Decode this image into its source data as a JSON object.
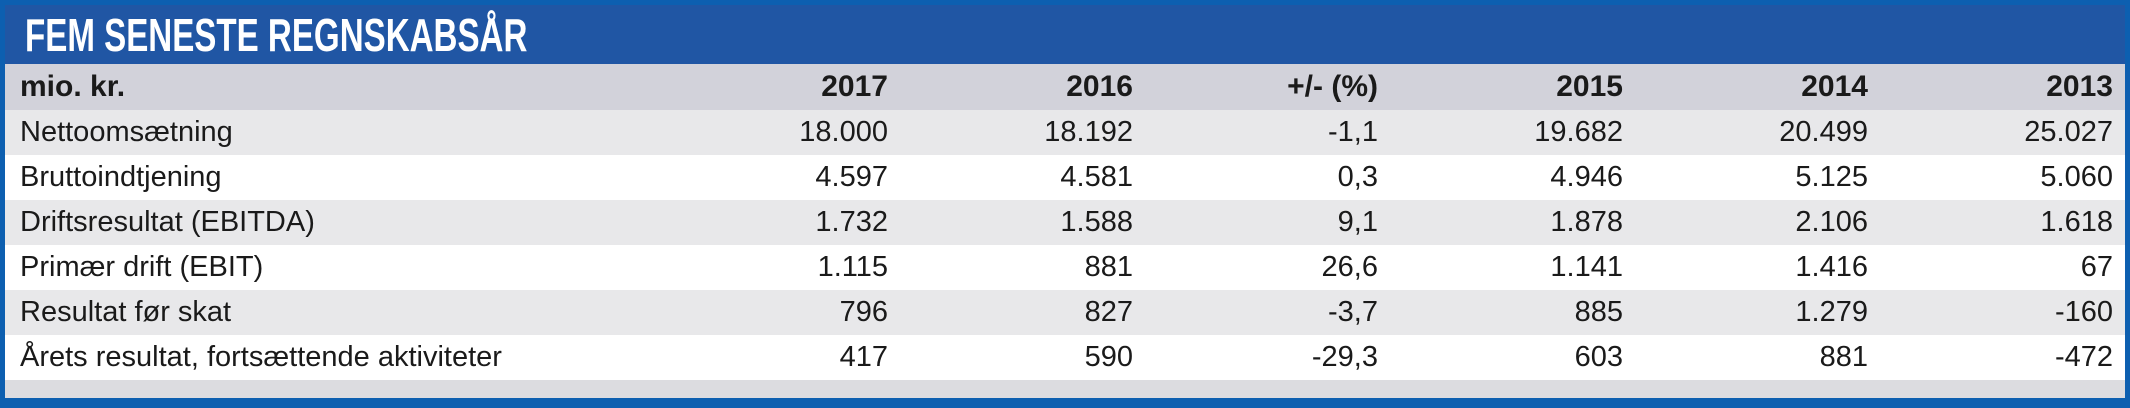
{
  "title": "FEM SENESTE REGNSKABSÅR",
  "colors": {
    "frame_blue": "#0d5fb0",
    "title_bar_blue": "#2056a4",
    "title_text": "#ffffff",
    "header_row_gray": "#d2d2da",
    "stripe_row_gray": "#e8e8ea",
    "plain_row_white": "#ffffff",
    "spacer_row_gray": "#dcdce0",
    "body_text": "#1a1a1a"
  },
  "chart_data": {
    "type": "table",
    "title": "FEM SENESTE REGNSKABSÅR",
    "unit_label": "mio. kr.",
    "columns": [
      "2017",
      "2016",
      "+/- (%)",
      "2015",
      "2014",
      "2013"
    ],
    "rows": [
      {
        "label": "Nettoomsætning",
        "cells": [
          "18.000",
          "18.192",
          "-1,1",
          "19.682",
          "20.499",
          "25.027"
        ],
        "values_by_year": {
          "2017": 18000,
          "2016": 18192,
          "2015": 19682,
          "2014": 20499,
          "2013": 25027
        },
        "pct_change_2017_vs_2016": -1.1
      },
      {
        "label": "Bruttoindtjening",
        "cells": [
          "4.597",
          "4.581",
          "0,3",
          "4.946",
          "5.125",
          "5.060"
        ],
        "values_by_year": {
          "2017": 4597,
          "2016": 4581,
          "2015": 4946,
          "2014": 5125,
          "2013": 5060
        },
        "pct_change_2017_vs_2016": 0.3
      },
      {
        "label": "Driftsresultat (EBITDA)",
        "cells": [
          "1.732",
          "1.588",
          "9,1",
          "1.878",
          "2.106",
          "1.618"
        ],
        "values_by_year": {
          "2017": 1732,
          "2016": 1588,
          "2015": 1878,
          "2014": 2106,
          "2013": 1618
        },
        "pct_change_2017_vs_2016": 9.1
      },
      {
        "label": "Primær drift (EBIT)",
        "cells": [
          "1.115",
          "881",
          "26,6",
          "1.141",
          "1.416",
          "67"
        ],
        "values_by_year": {
          "2017": 1115,
          "2016": 881,
          "2015": 1141,
          "2014": 1416,
          "2013": 67
        },
        "pct_change_2017_vs_2016": 26.6
      },
      {
        "label": "Resultat før skat",
        "cells": [
          "796",
          "827",
          "-3,7",
          "885",
          "1.279",
          "-160"
        ],
        "values_by_year": {
          "2017": 796,
          "2016": 827,
          "2015": 885,
          "2014": 1279,
          "2013": -160
        },
        "pct_change_2017_vs_2016": -3.7
      },
      {
        "label": "Årets resultat, fortsættende aktiviteter",
        "cells": [
          "417",
          "590",
          "-29,3",
          "603",
          "881",
          "-472"
        ],
        "values_by_year": {
          "2017": 417,
          "2016": 590,
          "2015": 603,
          "2014": 881,
          "2013": -472
        },
        "pct_change_2017_vs_2016": -29.3
      }
    ]
  }
}
